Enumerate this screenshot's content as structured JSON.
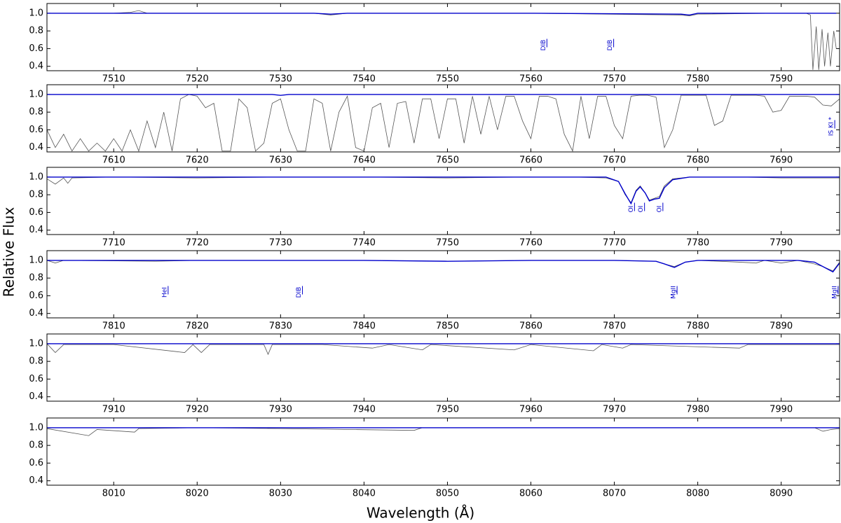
{
  "xlabel": "Wavelength (Å)",
  "ylabel": "Relative Flux",
  "chart_data": [
    {
      "type": "line",
      "xlim": [
        7502,
        7597
      ],
      "xticks": [
        7510,
        7520,
        7530,
        7540,
        7550,
        7560,
        7570,
        7580,
        7590
      ],
      "ylim": [
        0.35,
        1.11
      ],
      "yticks": [
        {
          "value": 0.4,
          "label": "0.4"
        },
        0.6,
        0.8,
        {
          "value": 1.0,
          "label": "1.0"
        }
      ],
      "x": [
        7502,
        7510,
        7512,
        7513,
        7514,
        7520,
        7534,
        7536,
        7538,
        7550,
        7560,
        7578,
        7579,
        7580,
        7590,
        7593,
        7593.5,
        7593.8,
        7594.2,
        7594.5,
        7594.9,
        7595.2,
        7595.6,
        7595.9,
        7596.3,
        7596.6
      ],
      "series": [
        {
          "color": "#555555",
          "values": [
            1.0,
            1.0,
            1.01,
            1.03,
            1.0,
            1.0,
            1.0,
            0.98,
            1.0,
            1.0,
            1.0,
            0.98,
            0.97,
            0.99,
            1.0,
            1.0,
            0.98,
            0.36,
            0.85,
            0.36,
            0.82,
            0.4,
            0.78,
            0.4,
            0.8,
            0.6
          ]
        },
        {
          "color": "#0000cc",
          "values": [
            1.0,
            1.0,
            1.0,
            1.0,
            1.0,
            1.0,
            1.0,
            0.99,
            1.0,
            1.0,
            1.0,
            0.99,
            0.98,
            1.0,
            1.0,
            1.0,
            1.0,
            1.0,
            1.0,
            1.0,
            1.0,
            1.0,
            1.0,
            1.0,
            1.0,
            1.0
          ]
        }
      ],
      "annotations": [
        {
          "text": "DIB",
          "x": 7561.5
        },
        {
          "text": "DIB",
          "x": 7569.5
        }
      ]
    },
    {
      "type": "line",
      "xlim": [
        7602,
        7697
      ],
      "xticks": [
        7610,
        7620,
        7630,
        7640,
        7650,
        7660,
        7670,
        7680,
        7690
      ],
      "ylim": [
        0.35,
        1.11
      ],
      "yticks": [
        {
          "value": 0.4,
          "label": "0.4"
        },
        0.6,
        0.8,
        {
          "value": 1.0,
          "label": "1.0"
        }
      ],
      "x": [
        7602,
        7603,
        7604,
        7605,
        7606,
        7607,
        7608,
        7609,
        7610,
        7611,
        7612,
        7613,
        7614,
        7615,
        7616,
        7617,
        7618,
        7619,
        7620,
        7621,
        7622,
        7623,
        7624,
        7625,
        7626,
        7627,
        7628,
        7629,
        7630,
        7631,
        7632,
        7633,
        7634,
        7635,
        7636,
        7637,
        7638,
        7639,
        7640,
        7641,
        7642,
        7643,
        7644,
        7645,
        7646,
        7647,
        7648,
        7649,
        7650,
        7651,
        7652,
        7653,
        7654,
        7655,
        7656,
        7657,
        7658,
        7659,
        7660,
        7661,
        7662,
        7663,
        7664,
        7665,
        7666,
        7667,
        7668,
        7669,
        7670,
        7671,
        7672,
        7673,
        7674,
        7675,
        7676,
        7677,
        7678,
        7679,
        7680,
        7681,
        7682,
        7683,
        7684,
        7685,
        7686,
        7687,
        7688,
        7689,
        7690,
        7691,
        7692,
        7693,
        7694,
        7695,
        7696,
        7697
      ],
      "series": [
        {
          "color": "#555555",
          "values": [
            0.6,
            0.4,
            0.55,
            0.36,
            0.5,
            0.36,
            0.45,
            0.36,
            0.5,
            0.36,
            0.6,
            0.36,
            0.7,
            0.4,
            0.8,
            0.36,
            0.95,
            1.0,
            0.98,
            0.85,
            0.9,
            0.36,
            0.36,
            0.95,
            0.85,
            0.36,
            0.45,
            0.9,
            0.95,
            0.6,
            0.36,
            0.36,
            0.95,
            0.9,
            0.36,
            0.8,
            0.98,
            0.4,
            0.36,
            0.85,
            0.9,
            0.4,
            0.9,
            0.92,
            0.45,
            0.95,
            0.95,
            0.5,
            0.95,
            0.95,
            0.45,
            0.98,
            0.55,
            0.98,
            0.6,
            0.98,
            0.98,
            0.7,
            0.5,
            0.98,
            0.98,
            0.95,
            0.55,
            0.36,
            0.98,
            0.5,
            0.98,
            0.98,
            0.65,
            0.5,
            0.98,
            0.99,
            0.99,
            0.97,
            0.4,
            0.6,
            0.99,
            0.99,
            0.99,
            0.99,
            0.65,
            0.7,
            0.99,
            0.99,
            0.99,
            0.99,
            0.98,
            0.8,
            0.82,
            0.98,
            0.98,
            0.98,
            0.97,
            0.88,
            0.87,
            0.95
          ]
        },
        {
          "color": "#0000cc",
          "values": [
            1.0,
            1.0,
            1.0,
            1.0,
            1.0,
            1.0,
            1.0,
            1.0,
            1.0,
            1.0,
            1.0,
            1.0,
            1.0,
            1.0,
            1.0,
            1.0,
            1.0,
            1.0,
            1.0,
            1.0,
            1.0,
            1.0,
            1.0,
            1.0,
            1.0,
            1.0,
            1.0,
            1.0,
            0.99,
            1.0,
            1.0,
            1.0,
            1.0,
            1.0,
            1.0,
            1.0,
            1.0,
            1.0,
            1.0,
            1.0,
            1.0,
            1.0,
            1.0,
            1.0,
            1.0,
            1.0,
            1.0,
            1.0,
            1.0,
            1.0,
            1.0,
            1.0,
            1.0,
            1.0,
            1.0,
            1.0,
            1.0,
            1.0,
            1.0,
            1.0,
            1.0,
            1.0,
            1.0,
            1.0,
            1.0,
            1.0,
            1.0,
            1.0,
            1.0,
            1.0,
            1.0,
            1.0,
            1.0,
            1.0,
            1.0,
            1.0,
            1.0,
            1.0,
            1.0,
            1.0,
            1.0,
            1.0,
            1.0,
            1.0,
            1.0,
            1.0,
            1.0,
            1.0,
            1.0,
            1.0,
            1.0,
            1.0,
            1.0,
            1.0,
            1.0,
            1.0
          ]
        }
      ],
      "annotations": [
        {
          "text": "IS KI *",
          "x": 7696
        }
      ]
    },
    {
      "type": "line",
      "xlim": [
        7702,
        7797
      ],
      "xticks": [
        7710,
        7720,
        7730,
        7740,
        7750,
        7760,
        7770,
        7780,
        7790
      ],
      "ylim": [
        0.35,
        1.11
      ],
      "yticks": [
        {
          "value": 0.4,
          "label": "0.4"
        },
        0.6,
        0.8,
        {
          "value": 1.0,
          "label": "1.0"
        }
      ],
      "x": [
        7702,
        7703,
        7704,
        7704.5,
        7705,
        7710,
        7720,
        7730,
        7740,
        7750,
        7760,
        7765,
        7769,
        7770.5,
        7771.3,
        7772,
        7772.6,
        7773.1,
        7773.7,
        7774.2,
        7774.8,
        7775.4,
        7776,
        7777,
        7779,
        7785,
        7790,
        7797
      ],
      "series": [
        {
          "color": "#555555",
          "values": [
            0.98,
            0.92,
            0.99,
            0.93,
            0.99,
            1.0,
            0.99,
            1.0,
            1.0,
            0.99,
            1.0,
            1.0,
            0.99,
            0.95,
            0.8,
            0.71,
            0.85,
            0.9,
            0.82,
            0.74,
            0.76,
            0.78,
            0.9,
            0.98,
            1.0,
            1.0,
            0.99,
            0.99
          ]
        },
        {
          "color": "#0000cc",
          "values": [
            1.0,
            1.0,
            1.0,
            1.0,
            1.0,
            1.0,
            1.0,
            1.0,
            1.0,
            1.0,
            1.0,
            1.0,
            1.0,
            0.95,
            0.81,
            0.7,
            0.84,
            0.89,
            0.82,
            0.73,
            0.75,
            0.76,
            0.88,
            0.97,
            1.0,
            1.0,
            1.0,
            1.0
          ]
        }
      ],
      "annotations": [
        {
          "text": "OI",
          "x": 7772.0
        },
        {
          "text": "OI",
          "x": 7773.2
        },
        {
          "text": "OI",
          "x": 7775.4
        }
      ]
    },
    {
      "type": "line",
      "xlim": [
        7802,
        7897
      ],
      "xticks": [
        7810,
        7820,
        7830,
        7840,
        7850,
        7860,
        7870,
        7880,
        7890
      ],
      "ylim": [
        0.35,
        1.11
      ],
      "yticks": [
        {
          "value": 0.4,
          "label": "0.4"
        },
        0.6,
        0.8,
        {
          "value": 1.0,
          "label": "1.0"
        }
      ],
      "x": [
        7802,
        7803,
        7804,
        7815,
        7820,
        7840,
        7850,
        7860,
        7870,
        7875,
        7876,
        7877.2,
        7878.5,
        7880,
        7885,
        7887,
        7888,
        7890,
        7892,
        7894,
        7895,
        7896.2,
        7897
      ],
      "series": [
        {
          "color": "#555555",
          "values": [
            1.0,
            0.97,
            1.0,
            0.99,
            1.0,
            1.0,
            0.99,
            1.0,
            1.0,
            0.99,
            0.96,
            0.93,
            0.98,
            1.0,
            0.98,
            0.97,
            1.0,
            0.97,
            1.0,
            0.96,
            0.93,
            0.88,
            0.98
          ]
        },
        {
          "color": "#0000cc",
          "values": [
            1.0,
            1.0,
            1.0,
            1.0,
            1.0,
            1.0,
            0.99,
            1.0,
            1.0,
            0.99,
            0.96,
            0.92,
            0.98,
            1.0,
            1.0,
            1.0,
            1.0,
            1.0,
            1.0,
            0.98,
            0.93,
            0.87,
            0.97
          ]
        }
      ],
      "annotations": [
        {
          "text": "HeI",
          "x": 7816.1
        },
        {
          "text": "DIB",
          "x": 7832.2
        },
        {
          "text": "MgII",
          "x": 7877.1
        },
        {
          "text": "MgII",
          "x": 7896.4
        }
      ]
    },
    {
      "type": "line",
      "xlim": [
        7902,
        7997
      ],
      "xticks": [
        7910,
        7920,
        7930,
        7940,
        7950,
        7960,
        7970,
        7980,
        7990
      ],
      "ylim": [
        0.35,
        1.11
      ],
      "yticks": [
        {
          "value": 0.4,
          "label": "0.4"
        },
        0.6,
        0.8,
        {
          "value": 1.0,
          "label": "1.0"
        }
      ],
      "x": [
        7902,
        7903,
        7904,
        7910,
        7918.5,
        7919.5,
        7920.5,
        7921.5,
        7928,
        7928.5,
        7929,
        7935,
        7941,
        7943,
        7947,
        7948,
        7958,
        7960,
        7967.5,
        7968.5,
        7971,
        7972,
        7985,
        7986,
        7997
      ],
      "series": [
        {
          "color": "#555555",
          "values": [
            1.0,
            0.9,
            0.99,
            0.99,
            0.9,
            0.99,
            0.9,
            0.99,
            0.99,
            0.88,
            0.99,
            0.99,
            0.95,
            0.99,
            0.93,
            0.99,
            0.93,
            0.99,
            0.92,
            0.99,
            0.95,
            0.99,
            0.95,
            0.99,
            0.99
          ]
        },
        {
          "color": "#0000cc",
          "values": [
            1.0,
            1.0,
            1.0,
            1.0,
            1.0,
            1.0,
            1.0,
            1.0,
            1.0,
            1.0,
            1.0,
            1.0,
            1.0,
            1.0,
            1.0,
            1.0,
            1.0,
            1.0,
            1.0,
            1.0,
            1.0,
            1.0,
            1.0,
            1.0,
            1.0
          ]
        }
      ]
    },
    {
      "type": "line",
      "xlim": [
        8002,
        8097
      ],
      "xticks": [
        8010,
        8020,
        8030,
        8040,
        8050,
        8060,
        8070,
        8080,
        8090
      ],
      "ylim": [
        0.35,
        1.11
      ],
      "yticks": [
        {
          "value": 0.4,
          "label": "0.4"
        },
        0.6,
        0.8,
        {
          "value": 1.0,
          "label": "1.0"
        }
      ],
      "x": [
        8002,
        8007,
        8008,
        8012.5,
        8013,
        8020,
        8030,
        8046,
        8047,
        8060,
        8080,
        8094,
        8095,
        8096,
        8097
      ],
      "series": [
        {
          "color": "#555555",
          "values": [
            0.99,
            0.91,
            0.98,
            0.95,
            0.99,
            1.0,
            0.99,
            0.97,
            1.0,
            1.0,
            1.0,
            1.0,
            0.96,
            0.98,
            0.99
          ]
        },
        {
          "color": "#0000cc",
          "values": [
            1.0,
            1.0,
            1.0,
            1.0,
            1.0,
            1.0,
            1.0,
            1.0,
            1.0,
            1.0,
            1.0,
            1.0,
            1.0,
            1.0,
            1.0
          ]
        }
      ]
    }
  ]
}
